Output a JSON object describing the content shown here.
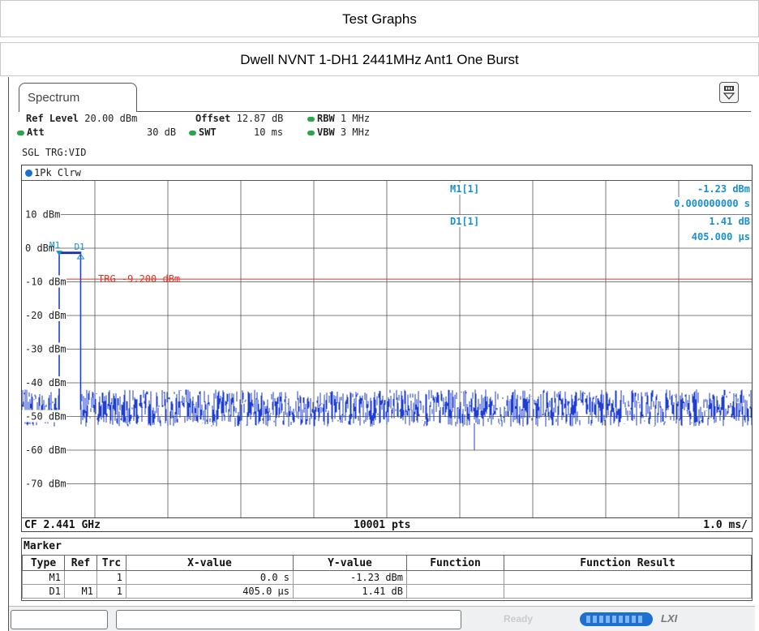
{
  "header": {
    "title": "Test Graphs",
    "subtitle": "Dwell NVNT 1-DH1 2441MHz Ant1 One Burst"
  },
  "tab": {
    "label": "Spectrum"
  },
  "settings": {
    "ref_level_label": "Ref Level",
    "ref_level_value": "20.00 dBm",
    "offset_label": "Offset",
    "offset_value": "12.87 dB",
    "rbw_label": "RBW",
    "rbw_value": "1 MHz",
    "att_label": "Att",
    "att_value": "30 dB",
    "swt_label": "SWT",
    "swt_value": "10 ms",
    "vbw_label": "VBW",
    "vbw_value": "3 MHz",
    "trigger": "SGL TRG:VID"
  },
  "trace_label": "1Pk Clrw",
  "markers_readout": {
    "m1_label": "M1[1]",
    "m1_level": "-1.23 dBm",
    "m1_time": "0.000000000 s",
    "d1_label": "D1[1]",
    "d1_level": "1.41 dB",
    "d1_time": "405.000 µs"
  },
  "trigger_line": {
    "label": "TRG -9.200 dBm",
    "level_dbm": -9.2
  },
  "marker_flags": {
    "m1": "M1",
    "d1": "D1"
  },
  "y_axis": {
    "ticks": [
      "10 dBm",
      "0 dBm",
      "-10 dBm",
      "-20 dBm",
      "-30 dBm",
      "-40 dBm",
      "-50 dBm",
      "-60 dBm",
      "-70 dBm"
    ],
    "ref_level_dbm": 20,
    "bottom_dbm": -80
  },
  "chart_data": {
    "type": "line",
    "x_unit": "ms",
    "x_range": [
      0,
      10
    ],
    "ylim": [
      -80,
      20
    ],
    "burst": {
      "start_ms": 0.0,
      "end_ms": 0.405,
      "level_dbm": -1.23
    },
    "noise_floor_dbm": [
      -53,
      -42
    ],
    "colors": {
      "trace": "#1f3fd0",
      "trigger": "#e83020",
      "marker": "#1a8fd1"
    }
  },
  "footer": {
    "center_freq": "CF 2.441 GHz",
    "points": "10001 pts",
    "per_div": "1.0 ms/"
  },
  "marker_table": {
    "title": "Marker",
    "headers": [
      "Type",
      "Ref",
      "Trc",
      "X-value",
      "Y-value",
      "Function",
      "Function Result"
    ],
    "rows": [
      [
        "M1",
        "",
        "1",
        "0.0 s",
        "-1.23 dBm",
        "",
        ""
      ],
      [
        "D1",
        "M1",
        "1",
        "405.0 µs",
        "1.41 dB",
        "",
        ""
      ]
    ]
  },
  "status": {
    "ready": "Ready",
    "lxi": "LXI"
  }
}
